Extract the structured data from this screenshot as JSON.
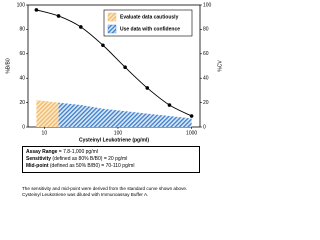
{
  "chart_data": {
    "type": "line",
    "x_label": "Cysteinyl Leukotriene (pg/ml)",
    "y_label": "%B/B0",
    "y2_label": "%CV",
    "x": [
      7.8,
      15.6,
      31.3,
      62.5,
      125,
      250,
      500,
      1000
    ],
    "series": [
      {
        "color": "#000000",
        "values": [
          96,
          91,
          82,
          67,
          49,
          32,
          18,
          9
        ]
      },
      {
        "axis": "y2",
        "color": "#3a7dc9",
        "values": [
          22,
          20,
          18,
          15,
          13,
          11,
          9,
          7
        ]
      }
    ],
    "xlim": [
      6,
      1300
    ],
    "xticks": [
      10,
      100,
      1000
    ],
    "log_x": true,
    "ylim": [
      0,
      100
    ],
    "yticks": [
      0,
      20,
      40,
      60,
      80,
      100
    ],
    "y2lim": [
      0,
      100
    ],
    "y2ticks": [
      0,
      20,
      40,
      60,
      80,
      100
    ],
    "legend": [
      {
        "label": "Evaluate data cautiously",
        "color": "#f2b766"
      },
      {
        "label": "Use data with confidence",
        "color": "#3a7dc9"
      }
    ]
  },
  "notes": {
    "assay": [
      {
        "label": "Assay Range",
        "text": "= 7.8-1,000 pg/ml"
      },
      {
        "label": "Sensitivity",
        "text": "(defined as 80% B/B0) = 20 pg/ml"
      },
      {
        "label": "Mid-point",
        "text": "(defined as 50% B/B0) = 70-110 pg/ml"
      }
    ],
    "footnote": "The sensitivity and mid-point were derived from the standard curve shown above. Cysteinyl Leukotriene was diluted with Immunoassay Buffer A."
  }
}
